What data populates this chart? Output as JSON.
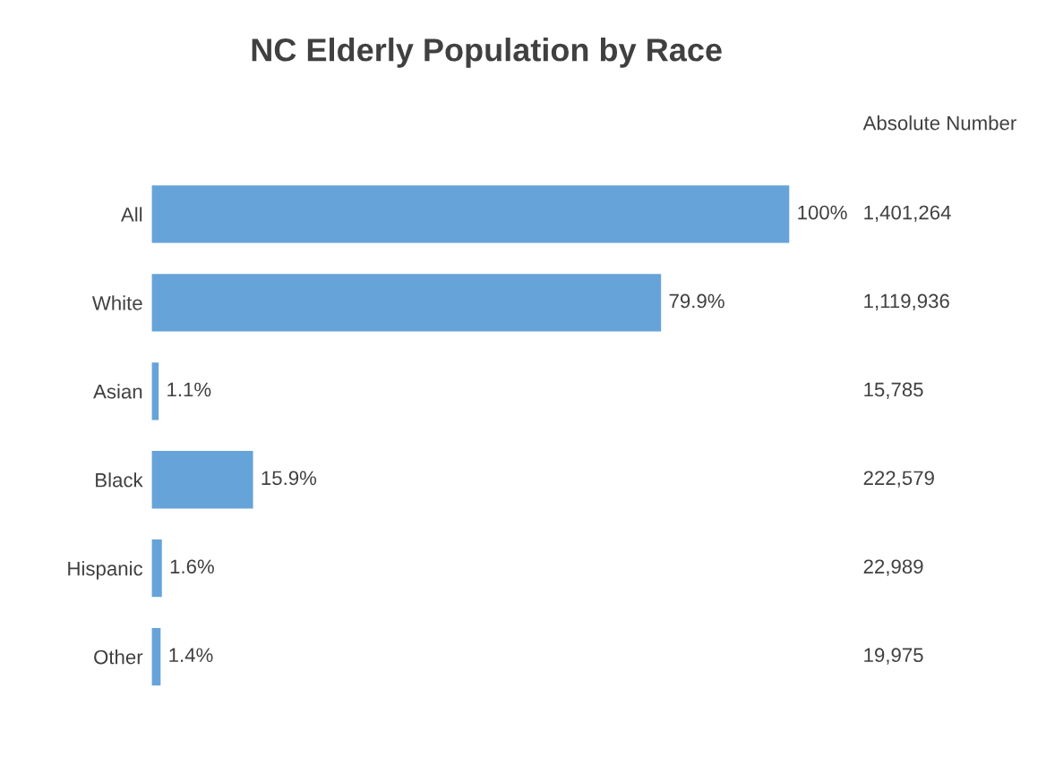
{
  "chart_data": {
    "type": "bar",
    "orientation": "horizontal",
    "title": "NC Elderly Population by Race",
    "categories": [
      "All",
      "White",
      "Asian",
      "Black",
      "Hispanic",
      "Other"
    ],
    "values": [
      100,
      79.9,
      1.1,
      15.9,
      1.6,
      1.4
    ],
    "value_labels": [
      "100%",
      "79.9%",
      "1.1%",
      "15.9%",
      "1.6%",
      "1.4%"
    ],
    "color": "#66a3d9",
    "grid": false,
    "legend": false,
    "tick_labels": "y",
    "annotations": [
      "Absolute Number",
      "1,401,264",
      "1,119,936",
      "15,785",
      "222,579",
      "22,989",
      "19,975"
    ]
  }
}
